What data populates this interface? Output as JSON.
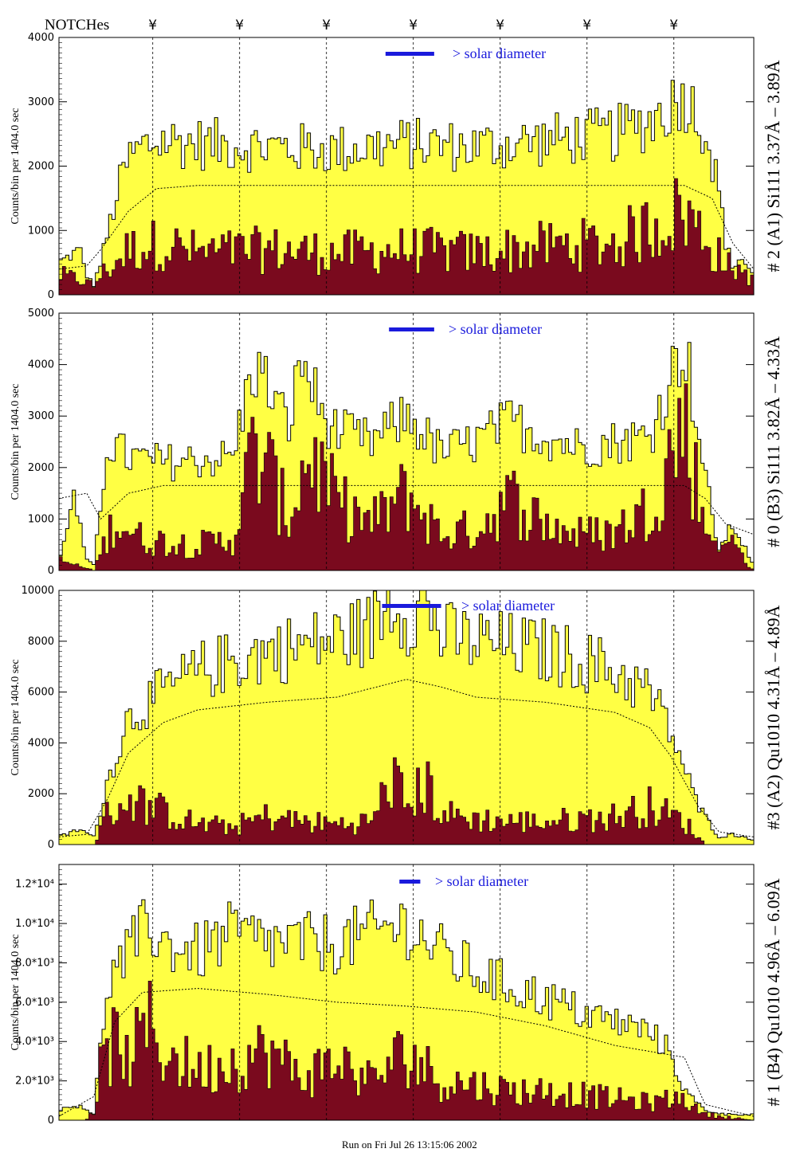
{
  "figure": {
    "notch_label": "NOTCHes",
    "notch_symbol": "¥",
    "footer": "Run on Fri Jul 26 13:15:06 2002",
    "legend_text": "> solar diameter",
    "colors": {
      "fill_total": "#ffff44",
      "fill_background": "#7a0a1e",
      "legend_bar": "#1a1adc",
      "axis": "#000000"
    }
  },
  "chart_data": [
    {
      "type": "area",
      "title": "",
      "ylabel": "Counts/bin per   1404.0 sec",
      "right_label": "# 2 (A1) Si111  3.37Å – 3.89Å",
      "ylim": [
        0,
        4000
      ],
      "yticks": [
        0,
        1000,
        2000,
        3000,
        4000
      ],
      "ytick_labels": [
        "0",
        "1000",
        "2000",
        "3000",
        "4000"
      ],
      "notch_x": [
        0.135,
        0.26,
        0.385,
        0.51,
        0.635,
        0.76,
        0.885
      ],
      "series": [
        {
          "name": "",
          "role": "total",
          "x": [
            0.0,
            0.03,
            0.04,
            0.05,
            0.06,
            0.08,
            0.09,
            0.1,
            0.12,
            0.15,
            0.2,
            0.3,
            0.4,
            0.5,
            0.6,
            0.7,
            0.75,
            0.8,
            0.85,
            0.9,
            0.93,
            0.95,
            0.96,
            0.97,
            0.98,
            1.0
          ],
          "values": [
            500,
            700,
            300,
            150,
            500,
            1400,
            1800,
            2100,
            2300,
            2400,
            2350,
            2300,
            2250,
            2350,
            2300,
            2400,
            2450,
            2500,
            2700,
            3100,
            2600,
            1600,
            800,
            400,
            600,
            300
          ]
        },
        {
          "name": "",
          "role": "background",
          "x": [
            0.0,
            0.05,
            0.1,
            0.15,
            0.2,
            0.3,
            0.4,
            0.5,
            0.6,
            0.7,
            0.8,
            0.9,
            0.95,
            1.0
          ],
          "values": [
            300,
            200,
            700,
            800,
            650,
            700,
            650,
            700,
            650,
            750,
            800,
            1300,
            600,
            250
          ]
        },
        {
          "name": "",
          "role": "model",
          "x": [
            0.0,
            0.04,
            0.06,
            0.1,
            0.14,
            0.2,
            0.8,
            0.9,
            0.94,
            0.97,
            1.0
          ],
          "values": [
            400,
            450,
            700,
            1300,
            1650,
            1700,
            1700,
            1700,
            1500,
            800,
            400
          ]
        }
      ],
      "legend_bar_x": [
        0.47,
        0.54
      ]
    },
    {
      "type": "area",
      "title": "",
      "ylabel": "Counts/bin per   1404.0 sec",
      "right_label": "# 0 (B3) Si111  3.82Å – 4.33Å",
      "ylim": [
        0,
        5000
      ],
      "yticks": [
        0,
        1000,
        2000,
        3000,
        4000,
        5000
      ],
      "ytick_labels": [
        "0",
        "1000",
        "2000",
        "3000",
        "4000",
        "5000"
      ],
      "notch_x": [
        0.135,
        0.26,
        0.385,
        0.51,
        0.635,
        0.76,
        0.885
      ],
      "series": [
        {
          "name": "",
          "role": "total",
          "x": [
            0.0,
            0.02,
            0.04,
            0.05,
            0.07,
            0.1,
            0.15,
            0.25,
            0.28,
            0.3,
            0.33,
            0.35,
            0.38,
            0.4,
            0.45,
            0.5,
            0.55,
            0.6,
            0.65,
            0.7,
            0.75,
            0.8,
            0.85,
            0.9,
            0.93,
            0.95,
            0.97,
            1.0
          ],
          "values": [
            100,
            1500,
            200,
            100,
            2500,
            2200,
            2100,
            2200,
            4000,
            3600,
            2800,
            4100,
            3000,
            2700,
            2500,
            3000,
            2300,
            2500,
            2900,
            2600,
            2400,
            2500,
            2600,
            4500,
            1800,
            400,
            900,
            100
          ]
        },
        {
          "name": "",
          "role": "background",
          "x": [
            0.0,
            0.05,
            0.08,
            0.12,
            0.2,
            0.25,
            0.28,
            0.3,
            0.33,
            0.36,
            0.4,
            0.45,
            0.5,
            0.55,
            0.6,
            0.65,
            0.7,
            0.75,
            0.8,
            0.85,
            0.9,
            0.93,
            0.96,
            1.0
          ],
          "values": [
            200,
            0,
            1000,
            600,
            500,
            600,
            2300,
            2000,
            1000,
            2300,
            1300,
            900,
            1500,
            700,
            800,
            1400,
            900,
            700,
            750,
            1200,
            2900,
            800,
            700,
            0
          ]
        },
        {
          "name": "",
          "role": "model",
          "x": [
            0.0,
            0.04,
            0.06,
            0.1,
            0.15,
            0.2,
            0.85,
            0.9,
            0.93,
            0.96,
            1.0
          ],
          "values": [
            1400,
            1500,
            1000,
            1500,
            1650,
            1650,
            1650,
            1650,
            1400,
            900,
            700
          ]
        }
      ],
      "legend_bar_x": [
        0.475,
        0.54
      ]
    },
    {
      "type": "area",
      "title": "",
      "ylabel": "Counts/bin per   1404.0 sec",
      "right_label": "#3 (A2) Qu1010  4.31Å – 4.89Å",
      "ylim": [
        0,
        10000
      ],
      "yticks": [
        0,
        2000,
        4000,
        6000,
        8000,
        10000
      ],
      "ytick_labels": [
        "0",
        "2000",
        "4000",
        "6000",
        "8000",
        "10000"
      ],
      "notch_x": [
        0.135,
        0.26,
        0.385,
        0.51,
        0.635,
        0.76,
        0.885
      ],
      "series": [
        {
          "name": "",
          "role": "total",
          "x": [
            0.0,
            0.03,
            0.05,
            0.07,
            0.1,
            0.15,
            0.2,
            0.25,
            0.3,
            0.35,
            0.4,
            0.45,
            0.48,
            0.5,
            0.53,
            0.55,
            0.6,
            0.65,
            0.7,
            0.75,
            0.8,
            0.85,
            0.88,
            0.92,
            0.95,
            0.97,
            1.0
          ],
          "values": [
            300,
            600,
            300,
            2500,
            5000,
            6000,
            6800,
            7200,
            7600,
            7800,
            8100,
            8500,
            9800,
            9000,
            9500,
            8200,
            8000,
            7800,
            7600,
            7300,
            6800,
            6000,
            4500,
            1500,
            300,
            400,
            200
          ]
        },
        {
          "name": "",
          "role": "background",
          "x": [
            0.0,
            0.05,
            0.07,
            0.1,
            0.15,
            0.2,
            0.25,
            0.3,
            0.35,
            0.4,
            0.45,
            0.48,
            0.5,
            0.53,
            0.55,
            0.6,
            0.65,
            0.7,
            0.75,
            0.8,
            0.85,
            0.9,
            0.93,
            1.0
          ],
          "values": [
            0,
            0,
            1200,
            1800,
            1300,
            800,
            700,
            1100,
            900,
            800,
            900,
            2700,
            1500,
            2400,
            1200,
            1000,
            900,
            900,
            1000,
            1100,
            1500,
            900,
            0,
            0
          ]
        },
        {
          "name": "",
          "role": "model",
          "x": [
            0.0,
            0.04,
            0.07,
            0.1,
            0.15,
            0.2,
            0.3,
            0.4,
            0.5,
            0.55,
            0.6,
            0.7,
            0.8,
            0.85,
            0.88,
            0.92,
            0.95,
            1.0
          ],
          "values": [
            300,
            400,
            1800,
            3600,
            4800,
            5300,
            5600,
            5800,
            6500,
            6200,
            5800,
            5600,
            5200,
            4600,
            3500,
            1500,
            500,
            300
          ]
        }
      ],
      "legend_bar_x": [
        0.465,
        0.55
      ]
    },
    {
      "type": "area",
      "title": "",
      "ylabel": "Counts/bin per   1404.0 sec",
      "right_label": "# 1 (B4) Qu1010 4.96Å – 6.09Å",
      "ylim": [
        0,
        13000
      ],
      "yticks": [
        2000,
        4000,
        6000,
        8000,
        10000,
        12000
      ],
      "ytick_labels": [
        "2.0*10³",
        "4.0*10³",
        "6.0*10³",
        "8.0*10³",
        "1.0*10⁴",
        "1.2*10⁴"
      ],
      "zero_label": "0",
      "notch_x": [
        0.135,
        0.26,
        0.385,
        0.51,
        0.635,
        0.76,
        0.885
      ],
      "series": [
        {
          "name": "",
          "role": "total",
          "x": [
            0.0,
            0.03,
            0.05,
            0.07,
            0.1,
            0.13,
            0.15,
            0.2,
            0.25,
            0.3,
            0.35,
            0.4,
            0.45,
            0.5,
            0.55,
            0.6,
            0.65,
            0.7,
            0.75,
            0.8,
            0.85,
            0.88,
            0.9,
            0.93,
            0.96,
            1.0
          ],
          "values": [
            500,
            800,
            300,
            7000,
            8500,
            10000,
            9000,
            8500,
            9500,
            9000,
            9000,
            9000,
            9500,
            10000,
            8500,
            7500,
            6800,
            6200,
            5500,
            5000,
            4500,
            3500,
            1500,
            500,
            300,
            300
          ]
        },
        {
          "name": "",
          "role": "background",
          "x": [
            0.0,
            0.04,
            0.06,
            0.08,
            0.1,
            0.13,
            0.15,
            0.2,
            0.25,
            0.3,
            0.35,
            0.4,
            0.45,
            0.5,
            0.55,
            0.6,
            0.65,
            0.7,
            0.75,
            0.8,
            0.85,
            0.9,
            0.93,
            1.0
          ],
          "values": [
            0,
            0,
            2500,
            4000,
            3000,
            4800,
            3500,
            2500,
            3000,
            3500,
            2200,
            3000,
            2000,
            3500,
            2000,
            1800,
            1500,
            1500,
            1300,
            1100,
            900,
            1200,
            300,
            0
          ]
        },
        {
          "name": "",
          "role": "model",
          "x": [
            0.0,
            0.05,
            0.08,
            0.12,
            0.2,
            0.3,
            0.4,
            0.5,
            0.6,
            0.7,
            0.8,
            0.85,
            0.9,
            0.93,
            1.0
          ],
          "values": [
            200,
            1200,
            5000,
            6500,
            6700,
            6400,
            6000,
            5800,
            5500,
            4800,
            3800,
            3500,
            3200,
            800,
            200
          ]
        }
      ],
      "legend_bar_x": [
        0.49,
        0.52
      ]
    }
  ]
}
